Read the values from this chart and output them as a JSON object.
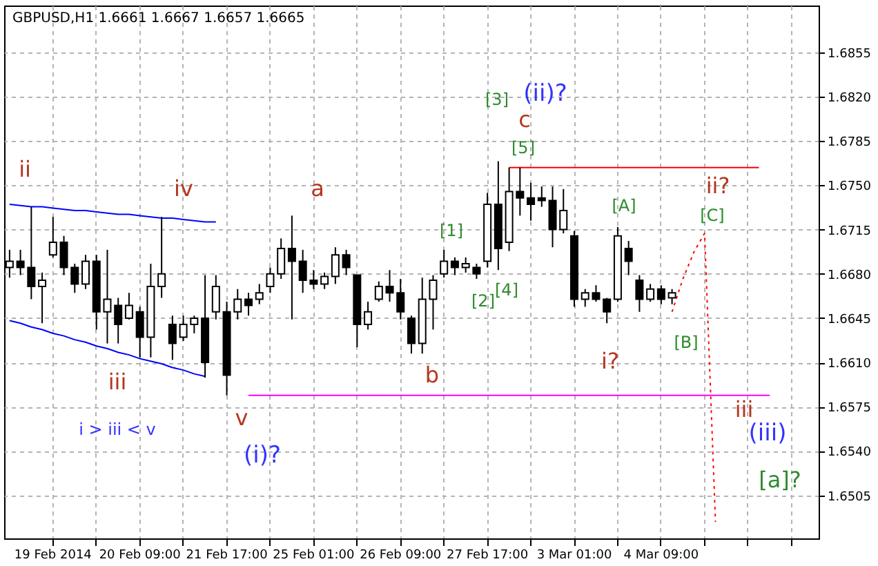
{
  "chart_data": {
    "type": "candlestick",
    "title": "GBPUSD,H1  1.6661 1.6667 1.6657 1.6665",
    "color": "#000000",
    "categories": [
      null,
      null,
      null,
      null,
      "19 Feb 2014",
      null,
      null,
      null,
      null,
      null,
      null,
      null,
      "20 Feb 09:00",
      null,
      null,
      null,
      null,
      null,
      null,
      null,
      "21 Feb 17:00",
      null,
      null,
      null,
      null,
      null,
      null,
      null,
      "25 Feb 01:00",
      null,
      null,
      null,
      null,
      null,
      null,
      null,
      "26 Feb 09:00",
      null,
      null,
      null,
      null,
      null,
      null,
      null,
      "27 Feb 17:00",
      null,
      null,
      null,
      null,
      null,
      null,
      null,
      "3 Mar 01:00",
      null,
      null,
      null,
      null,
      null,
      null,
      null,
      "4 Mar 09:00",
      null,
      null,
      null,
      null,
      null,
      null,
      null,
      null,
      null,
      null,
      null,
      null,
      null,
      null
    ],
    "ohlc": [
      [
        1.6685,
        1.6699,
        1.6677,
        1.669
      ],
      [
        1.669,
        1.6699,
        1.6679,
        1.6685
      ],
      [
        1.6685,
        1.6733,
        1.666,
        1.667
      ],
      [
        1.667,
        1.6681,
        1.6641,
        1.6675
      ],
      [
        1.6695,
        1.6725,
        1.6693,
        1.6705
      ],
      [
        1.6705,
        1.671,
        1.6679,
        1.6685
      ],
      [
        1.6685,
        1.6688,
        1.6665,
        1.6672
      ],
      [
        1.6672,
        1.6695,
        1.6668,
        1.669
      ],
      [
        1.669,
        1.6695,
        1.6636,
        1.665
      ],
      [
        1.665,
        1.6699,
        1.6625,
        1.666
      ],
      [
        1.6655,
        1.6661,
        1.6625,
        1.664
      ],
      [
        1.6645,
        1.6665,
        1.6644,
        1.6655
      ],
      [
        1.665,
        1.6654,
        1.6614,
        1.663
      ],
      [
        1.663,
        1.6688,
        1.6614,
        1.667
      ],
      [
        1.667,
        1.6725,
        1.6661,
        1.668
      ],
      [
        1.664,
        1.6647,
        1.6612,
        1.6625
      ],
      [
        1.663,
        1.6647,
        1.6627,
        1.664
      ],
      [
        1.664,
        1.6647,
        1.6633,
        1.6645
      ],
      [
        1.6645,
        1.6679,
        1.6598,
        1.661
      ],
      [
        1.665,
        1.6679,
        1.6644,
        1.667
      ],
      [
        1.665,
        1.6658,
        1.6584,
        1.66
      ],
      [
        1.665,
        1.6668,
        1.6644,
        1.666
      ],
      [
        1.666,
        1.6665,
        1.6647,
        1.6655
      ],
      [
        1.666,
        1.6672,
        1.6656,
        1.6665
      ],
      [
        1.667,
        1.6685,
        1.6665,
        1.668
      ],
      [
        1.668,
        1.6708,
        1.6676,
        1.67
      ],
      [
        1.67,
        1.6726,
        1.6644,
        1.669
      ],
      [
        1.669,
        1.6699,
        1.6665,
        1.6675
      ],
      [
        1.6675,
        1.6683,
        1.6668,
        1.6672
      ],
      [
        1.6672,
        1.6681,
        1.6668,
        1.6678
      ],
      [
        1.6678,
        1.6701,
        1.6672,
        1.6695
      ],
      [
        1.6695,
        1.6699,
        1.6679,
        1.6685
      ],
      [
        1.6679,
        1.6679,
        1.6622,
        1.664
      ],
      [
        1.664,
        1.6658,
        1.6636,
        1.665
      ],
      [
        1.666,
        1.6674,
        1.6658,
        1.667
      ],
      [
        1.667,
        1.6683,
        1.6658,
        1.6665
      ],
      [
        1.6665,
        1.6676,
        1.6644,
        1.665
      ],
      [
        1.6645,
        1.6647,
        1.6617,
        1.6625
      ],
      [
        1.6625,
        1.6677,
        1.6617,
        1.666
      ],
      [
        1.666,
        1.6679,
        1.6636,
        1.6675
      ],
      [
        1.668,
        1.6699,
        1.6677,
        1.669
      ],
      [
        1.669,
        1.6693,
        1.6679,
        1.6685
      ],
      [
        1.6685,
        1.6693,
        1.6681,
        1.6688
      ],
      [
        1.6685,
        1.6688,
        1.6676,
        1.668
      ],
      [
        1.669,
        1.6744,
        1.6685,
        1.6735
      ],
      [
        1.6735,
        1.6769,
        1.6683,
        1.67
      ],
      [
        1.6705,
        1.6764,
        1.6698,
        1.6745
      ],
      [
        1.6745,
        1.6764,
        1.6726,
        1.674
      ],
      [
        1.674,
        1.6752,
        1.6722,
        1.6735
      ],
      [
        1.674,
        1.6749,
        1.6733,
        1.6738
      ],
      [
        1.6738,
        1.6749,
        1.6701,
        1.6715
      ],
      [
        1.6715,
        1.6747,
        1.6712,
        1.673
      ],
      [
        1.671,
        1.6714,
        1.6654,
        1.666
      ],
      [
        1.666,
        1.6668,
        1.6654,
        1.6665
      ],
      [
        1.6665,
        1.6671,
        1.6658,
        1.666
      ],
      [
        1.666,
        1.6661,
        1.6641,
        1.665
      ],
      [
        1.666,
        1.6717,
        1.6658,
        1.671
      ],
      [
        1.67,
        1.6706,
        1.6679,
        1.669
      ],
      [
        1.6675,
        1.6679,
        1.665,
        1.666
      ],
      [
        1.666,
        1.6672,
        1.6658,
        1.6668
      ],
      [
        1.6668,
        1.6671,
        1.6656,
        1.666
      ],
      [
        1.6661,
        1.6668,
        1.6656,
        1.6665
      ],
      null,
      null,
      null,
      null,
      null,
      null,
      null,
      null,
      null,
      null,
      null,
      null,
      null
    ],
    "series": [
      {
        "type": "line",
        "color": "#0000ff",
        "line_style": "solid",
        "values": [
          1.6735,
          1.6734,
          1.6733,
          1.6733,
          1.6732,
          1.6731,
          1.673,
          1.673,
          1.6729,
          1.6728,
          1.6727,
          1.6727,
          1.6726,
          1.6725,
          1.6724,
          1.6724,
          1.6723,
          1.6722,
          1.6721,
          1.6721,
          null,
          null,
          null,
          null,
          null,
          null,
          null,
          null,
          null,
          null,
          null,
          null,
          null,
          null,
          null,
          null,
          null,
          null,
          null,
          null,
          null,
          null,
          null,
          null,
          null,
          null,
          null,
          null,
          null,
          null,
          null,
          null,
          null,
          null,
          null,
          null,
          null,
          null,
          null,
          null,
          null,
          null,
          null,
          null,
          null,
          null,
          null,
          null,
          null,
          null,
          null,
          null,
          null,
          null,
          null
        ]
      },
      {
        "type": "line",
        "color": "#0000ff",
        "line_style": "solid",
        "values": [
          1.6643,
          1.6641,
          1.6638,
          1.6636,
          1.6633,
          1.6631,
          1.6628,
          1.6626,
          1.6623,
          1.6621,
          1.6618,
          1.6616,
          1.6613,
          1.6611,
          1.6609,
          1.6606,
          1.6604,
          1.6601,
          1.6599,
          null,
          null,
          null,
          null,
          null,
          null,
          null,
          null,
          null,
          null,
          null,
          null,
          null,
          null,
          null,
          null,
          null,
          null,
          null,
          null,
          null,
          null,
          null,
          null,
          null,
          null,
          null,
          null,
          null,
          null,
          null,
          null,
          null,
          null,
          null,
          null,
          null,
          null,
          null,
          null,
          null,
          null,
          null,
          null,
          null,
          null,
          null,
          null,
          null,
          null,
          null,
          null,
          null,
          null,
          null,
          null
        ]
      },
      {
        "type": "line",
        "color": "#ff00ff",
        "line_style": "solid",
        "values": [
          null,
          null,
          null,
          null,
          null,
          null,
          null,
          null,
          null,
          null,
          null,
          null,
          null,
          null,
          null,
          null,
          null,
          null,
          null,
          null,
          null,
          null,
          1.6584,
          1.6584,
          1.6584,
          1.6584,
          1.6584,
          1.6584,
          1.6584,
          1.6584,
          1.6584,
          1.6584,
          1.6584,
          1.6584,
          1.6584,
          1.6584,
          1.6584,
          1.6584,
          1.6584,
          1.6584,
          1.6584,
          1.6584,
          1.6584,
          1.6584,
          1.6584,
          1.6584,
          1.6584,
          1.6584,
          1.6584,
          1.6584,
          1.6584,
          1.6584,
          1.6584,
          1.6584,
          1.6584,
          1.6584,
          1.6584,
          1.6584,
          1.6584,
          1.6584,
          1.6584,
          1.6584,
          1.6584,
          1.6584,
          1.6584,
          1.6584,
          1.6584,
          1.6584,
          1.6584,
          1.6584,
          1.6584,
          null,
          null,
          null,
          null
        ]
      },
      {
        "type": "line",
        "color": "#ff0000",
        "line_style": "solid",
        "values": [
          null,
          null,
          null,
          null,
          null,
          null,
          null,
          null,
          null,
          null,
          null,
          null,
          null,
          null,
          null,
          null,
          null,
          null,
          null,
          null,
          null,
          null,
          null,
          null,
          null,
          null,
          null,
          null,
          null,
          null,
          null,
          null,
          null,
          null,
          null,
          null,
          null,
          null,
          null,
          null,
          null,
          null,
          null,
          null,
          null,
          null,
          1.6764,
          1.6764,
          1.6764,
          1.6764,
          1.6764,
          1.6764,
          1.6764,
          1.6764,
          1.6764,
          1.6764,
          1.6764,
          1.6764,
          1.6764,
          1.6764,
          1.6764,
          1.6764,
          1.6764,
          1.6764,
          1.6764,
          1.6764,
          1.6764,
          1.6764,
          1.6764,
          1.6764,
          null,
          null,
          null,
          null,
          null
        ]
      },
      {
        "type": "line",
        "color": "#ff0000",
        "line_style": "dotted",
        "values": [
          null,
          null,
          null,
          null,
          null,
          null,
          null,
          null,
          null,
          null,
          null,
          null,
          null,
          null,
          null,
          null,
          null,
          null,
          null,
          null,
          null,
          null,
          null,
          null,
          null,
          null,
          null,
          null,
          null,
          null,
          null,
          null,
          null,
          null,
          null,
          null,
          null,
          null,
          null,
          null,
          null,
          null,
          null,
          null,
          null,
          null,
          null,
          null,
          null,
          null,
          null,
          null,
          null,
          null,
          null,
          null,
          null,
          null,
          null,
          null,
          null,
          1.665,
          1.6676,
          1.6697,
          1.6712,
          1.6484,
          null,
          null,
          null,
          null,
          null,
          null,
          null,
          null,
          null
        ]
      }
    ],
    "ylim": [
      1.6471,
      1.6892
    ],
    "yticks": [
      1.6505,
      {
        "value": 1.654,
        "label": "1.6540"
      },
      1.6575,
      {
        "value": 1.661,
        "label": "1.6610"
      },
      1.6645,
      {
        "value": 1.668,
        "label": "1.6680"
      },
      1.6715,
      {
        "value": 1.675,
        "label": "1.6750"
      },
      1.6785,
      {
        "value": 1.682,
        "label": "1.6820"
      },
      1.6855
    ],
    "grid": true,
    "annotations": [
      "ii",
      "iv",
      "a",
      "iii",
      "b",
      "v",
      "(i)?",
      "i > iii < v",
      "(ii)?",
      "c",
      "[3]",
      "[5]",
      "[1]",
      "[2]",
      "[4]",
      "[A]",
      "ii?",
      "[C]",
      "[B]",
      "i?",
      "iii",
      "(iii)",
      "[a]?"
    ]
  }
}
